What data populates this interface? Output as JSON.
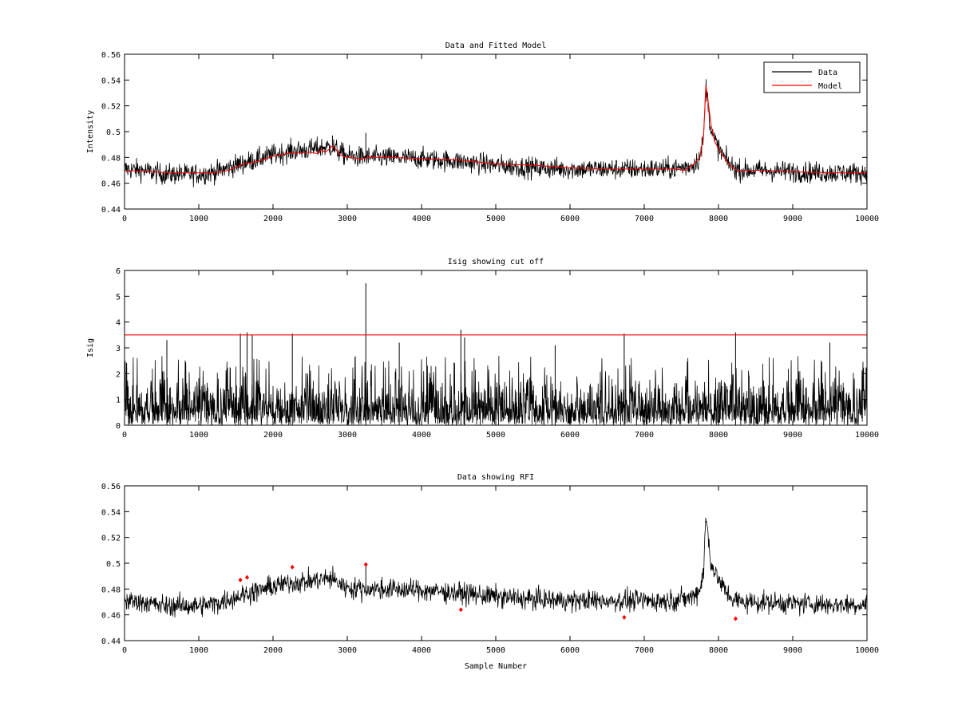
{
  "figure": {
    "background": "#ffffff"
  },
  "chart_data": [
    {
      "type": "line",
      "title": "Data and Fitted Model",
      "xlabel": "",
      "ylabel": "Intensity",
      "xlim": [
        0,
        10000
      ],
      "ylim": [
        0.44,
        0.56
      ],
      "xticks": [
        0,
        1000,
        2000,
        3000,
        4000,
        5000,
        6000,
        7000,
        8000,
        9000,
        10000
      ],
      "yticks": [
        0.44,
        0.46,
        0.48,
        0.5,
        0.52,
        0.54,
        0.56
      ],
      "xtick_labels": [
        "0",
        "1000",
        "2000",
        "3000",
        "4000",
        "5000",
        "6000",
        "7000",
        "8000",
        "9000",
        "10000"
      ],
      "ytick_labels": [
        "0.44",
        "0.46",
        "0.48",
        "0.5",
        "0.52",
        "0.54",
        "0.56"
      ],
      "grid": false,
      "legend": {
        "placement": "top-right",
        "entries": [
          "Data",
          "Model"
        ]
      },
      "series": [
        {
          "name": "Data",
          "color": "#000000",
          "render": "noisy-band",
          "baseline_x": [
            0,
            250,
            500,
            750,
            1000,
            1250,
            1500,
            1750,
            2000,
            2250,
            2500,
            2700,
            2800,
            2900,
            3000,
            3250,
            3500,
            4000,
            4500,
            5000,
            5500,
            6000,
            6500,
            7000,
            7300,
            7500,
            7650,
            7750,
            7800,
            7830,
            7850,
            7900,
            8000,
            8100,
            8200,
            8300,
            8500,
            9000,
            9500,
            10000
          ],
          "baseline_y": [
            0.471,
            0.47,
            0.467,
            0.467,
            0.467,
            0.469,
            0.474,
            0.478,
            0.482,
            0.485,
            0.486,
            0.488,
            0.488,
            0.484,
            0.481,
            0.48,
            0.48,
            0.479,
            0.477,
            0.474,
            0.472,
            0.471,
            0.471,
            0.471,
            0.471,
            0.472,
            0.474,
            0.48,
            0.495,
            0.536,
            0.527,
            0.5,
            0.487,
            0.478,
            0.472,
            0.47,
            0.47,
            0.469,
            0.468,
            0.468
          ],
          "noise_amplitude": 0.009,
          "spikes": [
            {
              "x": 3250,
              "y": 0.499
            },
            {
              "x": 2800,
              "y": 0.497
            }
          ]
        },
        {
          "name": "Model",
          "color": "#ff0000",
          "x": [
            0,
            300,
            600,
            1000,
            1200,
            1400,
            1600,
            1800,
            2000,
            2200,
            2500,
            2600,
            2650,
            2700,
            2750,
            2800,
            2850,
            2900,
            3000,
            3200,
            3300,
            3600,
            4000,
            4500,
            5000,
            5500,
            6000,
            6500,
            7000,
            7400,
            7550,
            7650,
            7750,
            7800,
            7830,
            7850,
            7900,
            7950,
            8050,
            8150,
            8250,
            8400,
            8600,
            9000,
            9500,
            10000
          ],
          "y": [
            0.47,
            0.469,
            0.468,
            0.468,
            0.468,
            0.47,
            0.475,
            0.477,
            0.481,
            0.483,
            0.484,
            0.483,
            0.486,
            0.484,
            0.486,
            0.489,
            0.486,
            0.482,
            0.48,
            0.479,
            0.48,
            0.48,
            0.479,
            0.478,
            0.475,
            0.474,
            0.472,
            0.471,
            0.471,
            0.471,
            0.47,
            0.474,
            0.48,
            0.498,
            0.536,
            0.528,
            0.505,
            0.492,
            0.482,
            0.474,
            0.47,
            0.47,
            0.47,
            0.469,
            0.468,
            0.468
          ]
        }
      ]
    },
    {
      "type": "line",
      "title": "Isig showing cut off",
      "xlabel": "",
      "ylabel": "Isig",
      "xlim": [
        0,
        10000
      ],
      "ylim": [
        0,
        6
      ],
      "xticks": [
        0,
        1000,
        2000,
        3000,
        4000,
        5000,
        6000,
        7000,
        8000,
        9000,
        10000
      ],
      "yticks": [
        0,
        1,
        2,
        3,
        4,
        5,
        6
      ],
      "xtick_labels": [
        "0",
        "1000",
        "2000",
        "3000",
        "4000",
        "5000",
        "6000",
        "7000",
        "8000",
        "9000",
        "10000"
      ],
      "ytick_labels": [
        "0",
        "1",
        "2",
        "3",
        "4",
        "5",
        "6"
      ],
      "grid": false,
      "series": [
        {
          "name": "Isig",
          "color": "#000000",
          "render": "dense-spikes",
          "typical_max": 2.5,
          "peaks": [
            {
              "x": 1560,
              "y": 3.55
            },
            {
              "x": 1650,
              "y": 3.6
            },
            {
              "x": 1720,
              "y": 3.5
            },
            {
              "x": 2260,
              "y": 3.55
            },
            {
              "x": 3250,
              "y": 5.5
            },
            {
              "x": 4530,
              "y": 3.7
            },
            {
              "x": 4580,
              "y": 3.4
            },
            {
              "x": 6730,
              "y": 3.55
            },
            {
              "x": 8230,
              "y": 3.6
            },
            {
              "x": 570,
              "y": 3.3
            },
            {
              "x": 3700,
              "y": 3.2
            },
            {
              "x": 5800,
              "y": 3.1
            },
            {
              "x": 9500,
              "y": 3.2
            }
          ]
        },
        {
          "name": "Cut off",
          "color": "#ff0000",
          "x": [
            0,
            10000
          ],
          "y": [
            3.5,
            3.5
          ]
        }
      ]
    },
    {
      "type": "line",
      "title": "Data showing RFI",
      "xlabel": "Sample Number",
      "ylabel": "",
      "xlim": [
        0,
        10000
      ],
      "ylim": [
        0.44,
        0.56
      ],
      "xticks": [
        0,
        1000,
        2000,
        3000,
        4000,
        5000,
        6000,
        7000,
        8000,
        9000,
        10000
      ],
      "yticks": [
        0.44,
        0.46,
        0.48,
        0.5,
        0.52,
        0.54,
        0.56
      ],
      "xtick_labels": [
        "0",
        "1000",
        "2000",
        "3000",
        "4000",
        "5000",
        "6000",
        "7000",
        "8000",
        "9000",
        "10000"
      ],
      "ytick_labels": [
        "0.44",
        "0.46",
        "0.48",
        "0.5",
        "0.52",
        "0.54",
        "0.56"
      ],
      "grid": false,
      "series": [
        {
          "name": "Data",
          "color": "#000000",
          "render": "noisy-band",
          "baseline_x": [
            0,
            250,
            500,
            750,
            1000,
            1250,
            1500,
            1750,
            2000,
            2250,
            2500,
            2700,
            2800,
            2900,
            3000,
            3250,
            3500,
            4000,
            4500,
            5000,
            5500,
            6000,
            6500,
            7000,
            7300,
            7500,
            7650,
            7750,
            7800,
            7830,
            7850,
            7900,
            8000,
            8100,
            8200,
            8300,
            8500,
            9000,
            9500,
            10000
          ],
          "baseline_y": [
            0.471,
            0.47,
            0.467,
            0.467,
            0.467,
            0.469,
            0.474,
            0.478,
            0.482,
            0.485,
            0.486,
            0.488,
            0.488,
            0.484,
            0.481,
            0.48,
            0.48,
            0.479,
            0.477,
            0.474,
            0.472,
            0.471,
            0.471,
            0.471,
            0.471,
            0.472,
            0.474,
            0.48,
            0.495,
            0.536,
            0.527,
            0.5,
            0.487,
            0.478,
            0.472,
            0.47,
            0.47,
            0.469,
            0.468,
            0.468
          ],
          "noise_amplitude": 0.009,
          "spikes": [
            {
              "x": 3250,
              "y": 0.499
            }
          ]
        },
        {
          "name": "RFI",
          "color": "#ff0000",
          "render": "markers",
          "x": [
            1560,
            1650,
            2260,
            3250,
            4530,
            6730,
            8230
          ],
          "y": [
            0.487,
            0.489,
            0.497,
            0.499,
            0.464,
            0.458,
            0.457
          ]
        }
      ]
    }
  ]
}
